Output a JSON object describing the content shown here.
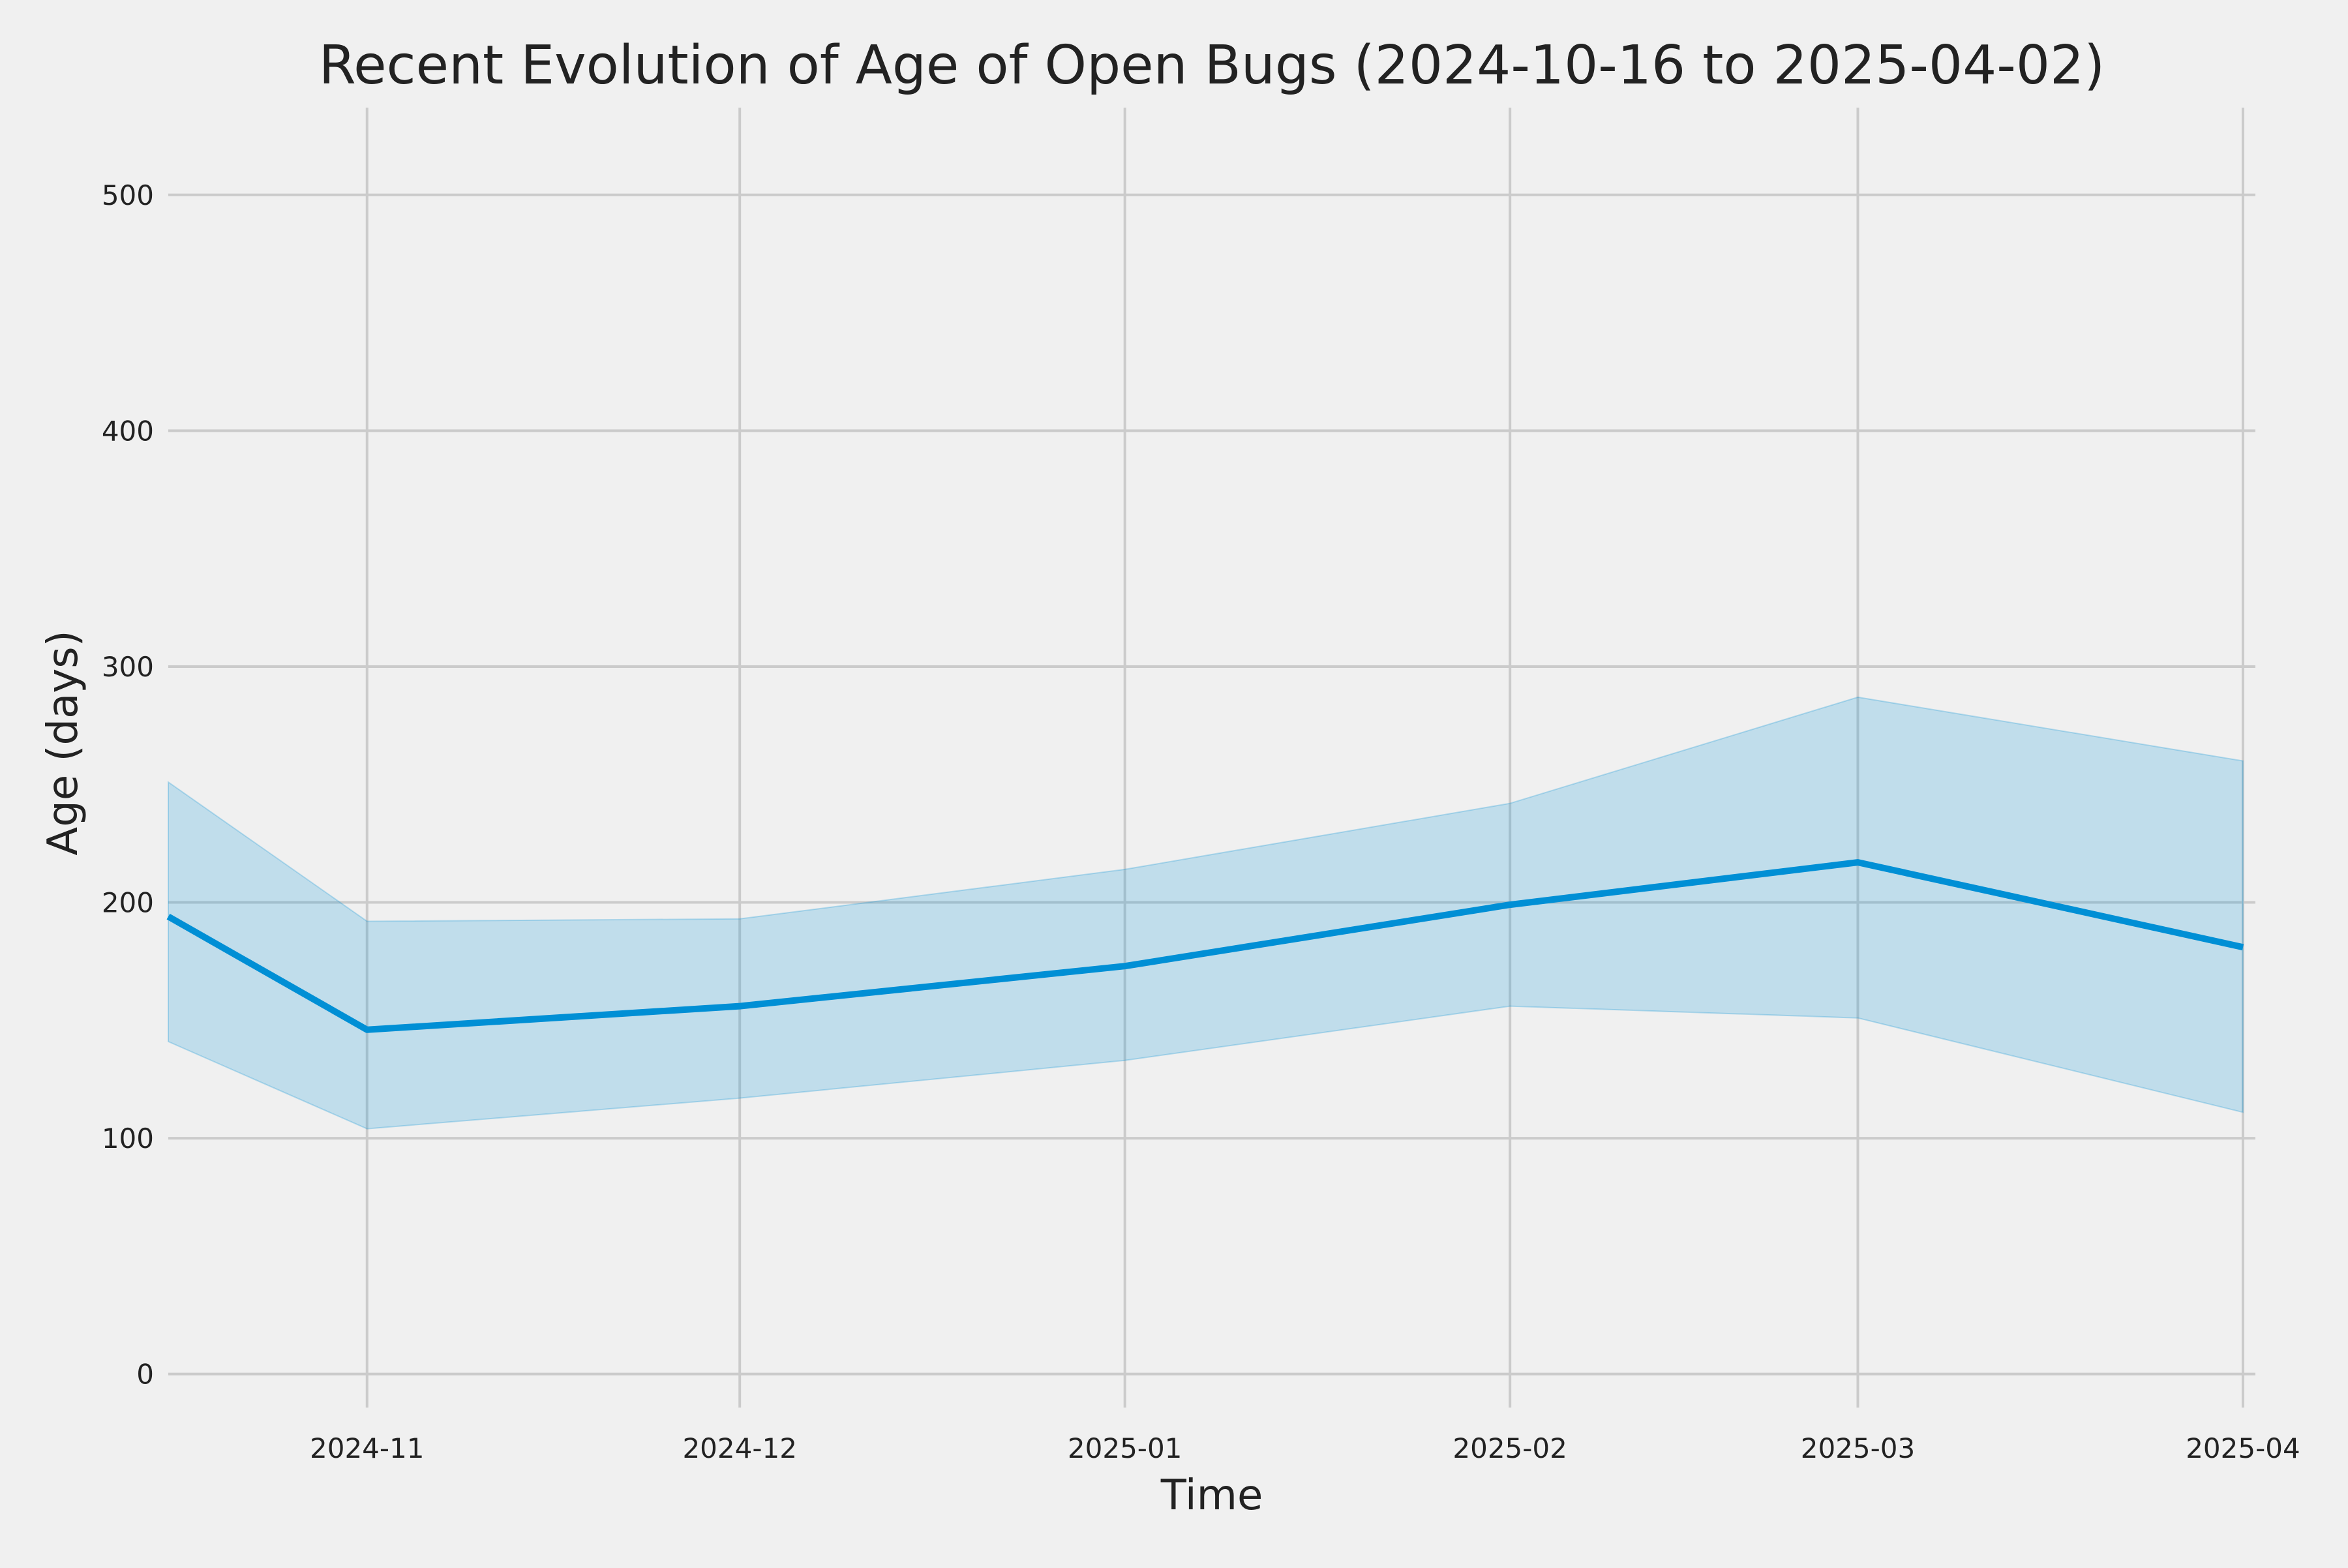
{
  "chart_data": {
    "type": "line",
    "title": "Recent Evolution of Age of Open Bugs (2024-10-16 to 2025-04-02)",
    "xlabel": "Time",
    "ylabel": "Age (days)",
    "xlim": [
      "2024-10-16",
      "2025-04-02"
    ],
    "ylim": [
      -20,
      537
    ],
    "grid": true,
    "x_ticks": [
      "2024-11",
      "2024-12",
      "2025-01",
      "2025-02",
      "2025-03",
      "2025-04"
    ],
    "y_ticks": [
      0,
      100,
      200,
      300,
      400,
      500
    ],
    "series": [
      {
        "x": [
          "2024-10-16",
          "2024-11-01",
          "2024-12-01",
          "2025-01-01",
          "2025-02-01",
          "2025-03-01",
          "2025-04-01"
        ],
        "values": [
          194,
          146,
          156,
          173,
          199,
          217,
          181
        ],
        "lower": [
          141,
          104,
          117,
          133,
          156,
          151,
          111
        ],
        "upper": [
          251,
          192,
          193,
          214,
          242,
          287,
          260
        ]
      }
    ],
    "colors": {
      "line": "#008fd5",
      "band": "#008fd5",
      "grid": "#cbcbcb",
      "background": "#f0f0f0",
      "text": "#222222"
    }
  }
}
